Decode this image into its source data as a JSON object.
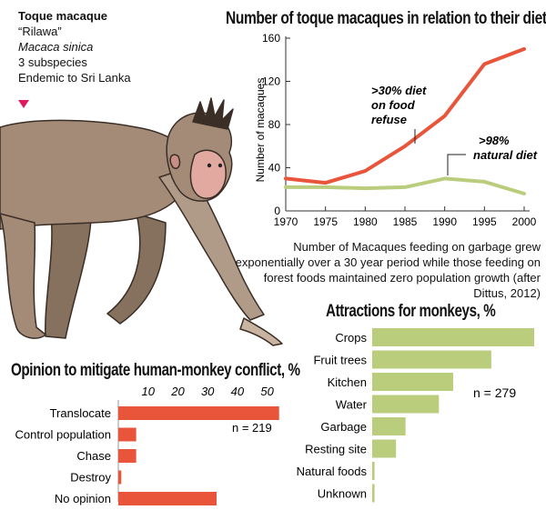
{
  "species": {
    "name": "Toque macaque",
    "local_name": "“Rilawa”",
    "latin_name": "Macaca sinica",
    "subspecies": "3 subspecies",
    "range": "Endemic to Sri Lanka"
  },
  "colors": {
    "orange": "#e8553a",
    "green": "#b9cd7d",
    "pointer": "#e0185f"
  },
  "chart_data": [
    {
      "type": "line",
      "title": "Number of toque macaques in relation to their diet",
      "xlabel": "",
      "ylabel": "Number of macaques",
      "x": [
        1970,
        1975,
        1980,
        1985,
        1990,
        1995,
        2000
      ],
      "ylim": [
        0,
        160
      ],
      "yticks": [
        0,
        40,
        80,
        120,
        160
      ],
      "series": [
        {
          "name": ">30% diet on food refuse",
          "color": "#e8553a",
          "values": [
            30,
            26,
            37,
            60,
            88,
            136,
            150
          ]
        },
        {
          "name": ">98% natural diet",
          "color": "#b9cd7d",
          "values": [
            22,
            22,
            21,
            22,
            30,
            27,
            16
          ]
        }
      ],
      "annotations": [
        ">30% diet on food refuse",
        ">98% natural diet"
      ],
      "caption": "Number of Macaques feeding on garbage grew exponentially over a 30 year period while those feeding on forest foods maintained zero population growth (after Dittus, 2012)"
    },
    {
      "type": "bar",
      "orientation": "horizontal",
      "title": "Opinion to mitigate human-monkey conflict, %",
      "categories": [
        "Translocate",
        "Control population",
        "Chase",
        "Destroy",
        "No opinion"
      ],
      "values": [
        54,
        6,
        6,
        1,
        33
      ],
      "xlim": [
        0,
        55
      ],
      "xticks": [
        10,
        20,
        30,
        40,
        50
      ],
      "color": "#e8553a",
      "note": "n = 219"
    },
    {
      "type": "bar",
      "orientation": "horizontal",
      "title": "Attractions for monkeys, %",
      "categories": [
        "Crops",
        "Fruit trees",
        "Kitchen",
        "Water",
        "Garbage",
        "Resting site",
        "Natural foods",
        "Unknown"
      ],
      "values": [
        34,
        25,
        17,
        14,
        7,
        5,
        0.5,
        0.5
      ],
      "xlim": [
        0,
        34
      ],
      "color": "#b9cd7d",
      "note": "n = 279"
    }
  ]
}
